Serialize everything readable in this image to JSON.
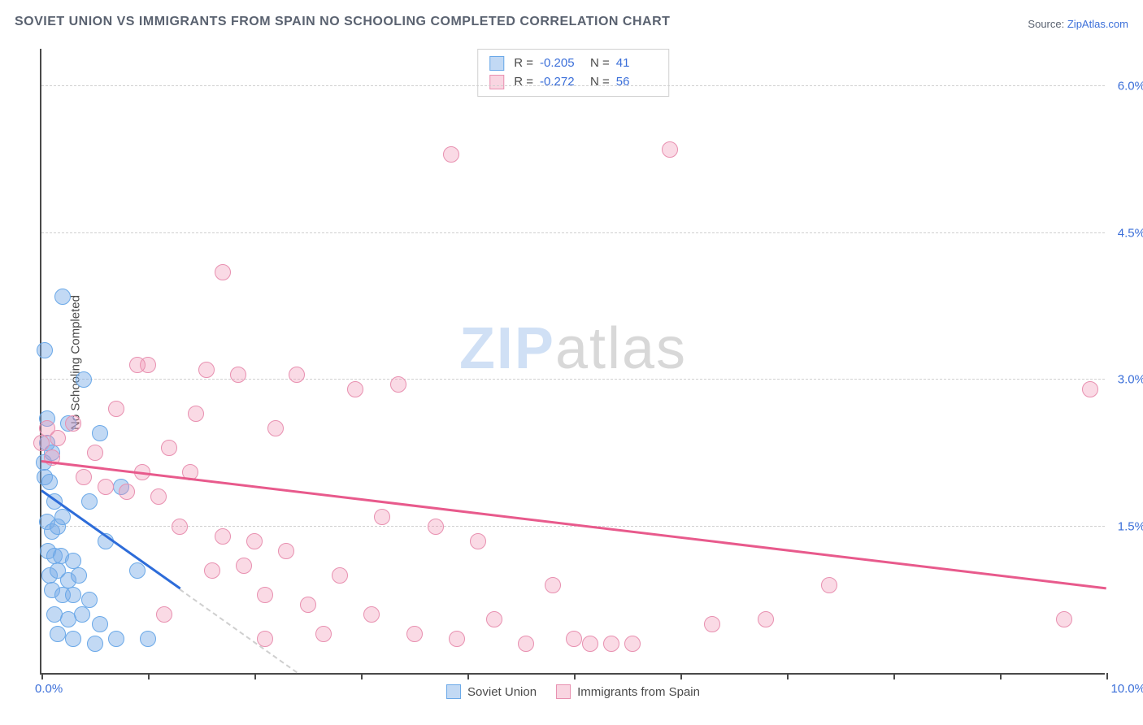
{
  "title": "SOVIET UNION VS IMMIGRANTS FROM SPAIN NO SCHOOLING COMPLETED CORRELATION CHART",
  "source_label": "Source:",
  "source_name": "ZipAtlas.com",
  "watermark": {
    "zip": "ZIP",
    "atlas": "atlas"
  },
  "chart": {
    "type": "scatter",
    "ylabel": "No Schooling Completed",
    "xlim": [
      0,
      10
    ],
    "ylim": [
      0,
      6.4
    ],
    "yticks": [
      1.5,
      3.0,
      4.5,
      6.0
    ],
    "ytick_labels": [
      "1.5%",
      "3.0%",
      "4.5%",
      "6.0%"
    ],
    "xlim_labels": {
      "min": "0.0%",
      "max": "10.0%"
    },
    "xtick_positions": [
      0,
      1,
      2,
      3,
      4,
      5,
      6,
      7,
      8,
      9,
      10
    ],
    "background_color": "#ffffff",
    "grid_color": "#d0d0d0",
    "axis_color": "#4a4a4a",
    "tick_label_color": "#3b6fd9",
    "marker_radius": 10,
    "series": [
      {
        "name": "Soviet Union",
        "color_fill": "rgba(120,170,230,0.45)",
        "color_stroke": "#6aa8e8",
        "class": "blue",
        "R": "-0.205",
        "N": "41",
        "trend": {
          "x1": 0.0,
          "y1": 1.85,
          "x2": 1.3,
          "y2": 0.85
        },
        "trend_ext": {
          "x1": 1.3,
          "y1": 0.85,
          "x2": 2.4,
          "y2": 0.0
        },
        "points": [
          [
            0.02,
            2.15
          ],
          [
            0.03,
            2.0
          ],
          [
            0.03,
            3.3
          ],
          [
            0.05,
            2.6
          ],
          [
            0.05,
            2.35
          ],
          [
            0.1,
            2.25
          ],
          [
            0.08,
            1.95
          ],
          [
            0.12,
            1.75
          ],
          [
            0.05,
            1.55
          ],
          [
            0.1,
            1.45
          ],
          [
            0.15,
            1.5
          ],
          [
            0.2,
            1.6
          ],
          [
            0.06,
            1.25
          ],
          [
            0.12,
            1.2
          ],
          [
            0.18,
            1.2
          ],
          [
            0.3,
            1.15
          ],
          [
            0.08,
            1.0
          ],
          [
            0.15,
            1.05
          ],
          [
            0.25,
            0.95
          ],
          [
            0.35,
            1.0
          ],
          [
            0.1,
            0.85
          ],
          [
            0.2,
            0.8
          ],
          [
            0.3,
            0.8
          ],
          [
            0.45,
            0.75
          ],
          [
            0.12,
            0.6
          ],
          [
            0.25,
            0.55
          ],
          [
            0.38,
            0.6
          ],
          [
            0.55,
            0.5
          ],
          [
            0.15,
            0.4
          ],
          [
            0.3,
            0.35
          ],
          [
            0.5,
            0.3
          ],
          [
            0.7,
            0.35
          ],
          [
            1.0,
            0.35
          ],
          [
            0.2,
            3.85
          ],
          [
            0.4,
            3.0
          ],
          [
            0.55,
            2.45
          ],
          [
            0.25,
            2.55
          ],
          [
            0.75,
            1.9
          ],
          [
            0.6,
            1.35
          ],
          [
            0.45,
            1.75
          ],
          [
            0.9,
            1.05
          ]
        ]
      },
      {
        "name": "Immigrants from Spain",
        "color_fill": "rgba(240,150,180,0.35)",
        "color_stroke": "#e890b0",
        "class": "pink",
        "R": "-0.272",
        "N": "56",
        "trend": {
          "x1": 0.0,
          "y1": 2.15,
          "x2": 10.0,
          "y2": 0.85
        },
        "points": [
          [
            0.0,
            2.35
          ],
          [
            0.05,
            2.5
          ],
          [
            0.1,
            2.2
          ],
          [
            0.15,
            2.4
          ],
          [
            0.3,
            2.55
          ],
          [
            0.4,
            2.0
          ],
          [
            0.5,
            2.25
          ],
          [
            0.6,
            1.9
          ],
          [
            0.7,
            2.7
          ],
          [
            0.8,
            1.85
          ],
          [
            0.95,
            2.05
          ],
          [
            1.0,
            3.15
          ],
          [
            1.1,
            1.8
          ],
          [
            1.2,
            2.3
          ],
          [
            1.3,
            1.5
          ],
          [
            1.4,
            2.05
          ],
          [
            1.55,
            3.1
          ],
          [
            1.6,
            1.05
          ],
          [
            1.7,
            1.4
          ],
          [
            1.7,
            4.1
          ],
          [
            1.85,
            3.05
          ],
          [
            1.9,
            1.1
          ],
          [
            2.0,
            1.35
          ],
          [
            2.1,
            0.8
          ],
          [
            2.2,
            2.5
          ],
          [
            2.3,
            1.25
          ],
          [
            2.4,
            3.05
          ],
          [
            2.5,
            0.7
          ],
          [
            2.65,
            0.4
          ],
          [
            2.8,
            1.0
          ],
          [
            2.95,
            2.9
          ],
          [
            3.1,
            0.6
          ],
          [
            3.2,
            1.6
          ],
          [
            3.35,
            2.95
          ],
          [
            3.5,
            0.4
          ],
          [
            3.7,
            1.5
          ],
          [
            3.85,
            5.3
          ],
          [
            3.9,
            0.35
          ],
          [
            4.1,
            1.35
          ],
          [
            4.25,
            0.55
          ],
          [
            4.55,
            0.3
          ],
          [
            4.8,
            0.9
          ],
          [
            5.0,
            0.35
          ],
          [
            5.15,
            0.3
          ],
          [
            5.35,
            0.3
          ],
          [
            5.55,
            0.3
          ],
          [
            5.9,
            5.35
          ],
          [
            6.3,
            0.5
          ],
          [
            6.8,
            0.55
          ],
          [
            7.4,
            0.9
          ],
          [
            9.6,
            0.55
          ],
          [
            9.85,
            2.9
          ],
          [
            1.45,
            2.65
          ],
          [
            0.9,
            3.15
          ],
          [
            2.1,
            0.35
          ],
          [
            1.15,
            0.6
          ]
        ]
      }
    ],
    "stats_labels": {
      "R": "R =",
      "N": "N ="
    },
    "legend": [
      {
        "class": "blue",
        "label": "Soviet Union"
      },
      {
        "class": "pink",
        "label": "Immigrants from Spain"
      }
    ]
  }
}
